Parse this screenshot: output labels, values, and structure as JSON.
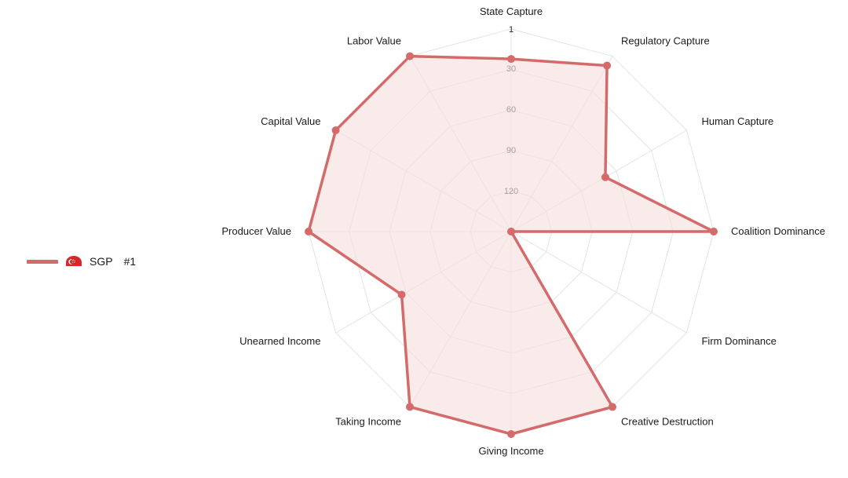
{
  "chart_data": {
    "type": "radar",
    "axes": [
      "State Capture",
      "Regulatory Capture",
      "Human Capture",
      "Coalition Dominance",
      "Firm Dominance",
      "Creative Destruction",
      "Giving Income",
      "Taking Income",
      "Unearned Income",
      "Producer Value",
      "Capital Value",
      "Labor Value"
    ],
    "radial_scale": {
      "reversed": true,
      "outer_value": 1,
      "center_value": 150,
      "ticks": [
        1,
        30,
        60,
        90,
        120
      ]
    },
    "series": [
      {
        "name": "SGP",
        "rank_label": "#1",
        "color": "#d46a6a",
        "fill": "#f4e0df",
        "values": [
          23,
          9,
          70,
          1,
          150,
          1,
          1,
          1,
          57,
          1,
          1,
          1
        ]
      }
    ],
    "grid": true,
    "legend_position": "left"
  },
  "legend": {
    "country": "SGP",
    "rank": "#1",
    "flag": "singapore-flag-icon"
  }
}
